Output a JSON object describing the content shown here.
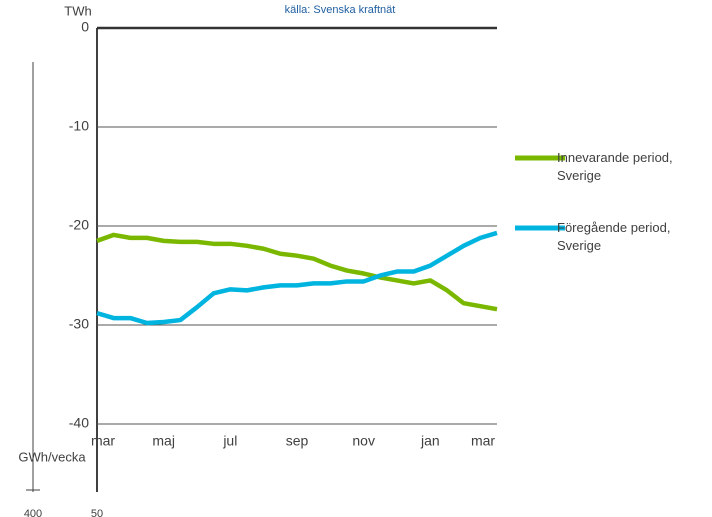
{
  "chart_data": {
    "type": "line",
    "y_label": "TWh",
    "source": "källa: Svenska kraftnät",
    "y2_label": "GWh/vecka",
    "lower_ticks": [
      "400",
      "50"
    ],
    "categories": [
      "mar",
      null,
      null,
      null,
      "maj",
      null,
      null,
      null,
      "jul",
      null,
      null,
      null,
      "sep",
      null,
      null,
      null,
      "nov",
      null,
      null,
      null,
      "jan",
      null,
      null,
      null,
      "mar"
    ],
    "series": [
      {
        "name": "Innevarande period, Sverige",
        "color": "#7ab800",
        "values": [
          -21.5,
          -20.9,
          -21.2,
          -21.2,
          -21.5,
          -21.6,
          -21.6,
          -21.8,
          -21.8,
          -22.0,
          -22.3,
          -22.8,
          -23.0,
          -23.3,
          -24.0,
          -24.5,
          -24.8,
          -25.2,
          -25.5,
          -25.8,
          -25.5,
          -26.5,
          -27.8,
          -28.1,
          -28.4
        ]
      },
      {
        "name": "Föregående period, Sverige",
        "color": "#00b4e0",
        "values": [
          -28.8,
          -29.3,
          -29.3,
          -29.8,
          -29.7,
          -29.5,
          -28.2,
          -26.8,
          -26.4,
          -26.5,
          -26.2,
          -26.0,
          -26.0,
          -25.8,
          -25.8,
          -25.6,
          -25.6,
          -25.0,
          -24.6,
          -24.6,
          -24.0,
          -23.0,
          -22.0,
          -21.2,
          -20.7
        ]
      }
    ],
    "ylim": [
      -40,
      0
    ],
    "yticks": [
      0,
      -10,
      -20,
      -30,
      -40
    ],
    "grid": true
  }
}
